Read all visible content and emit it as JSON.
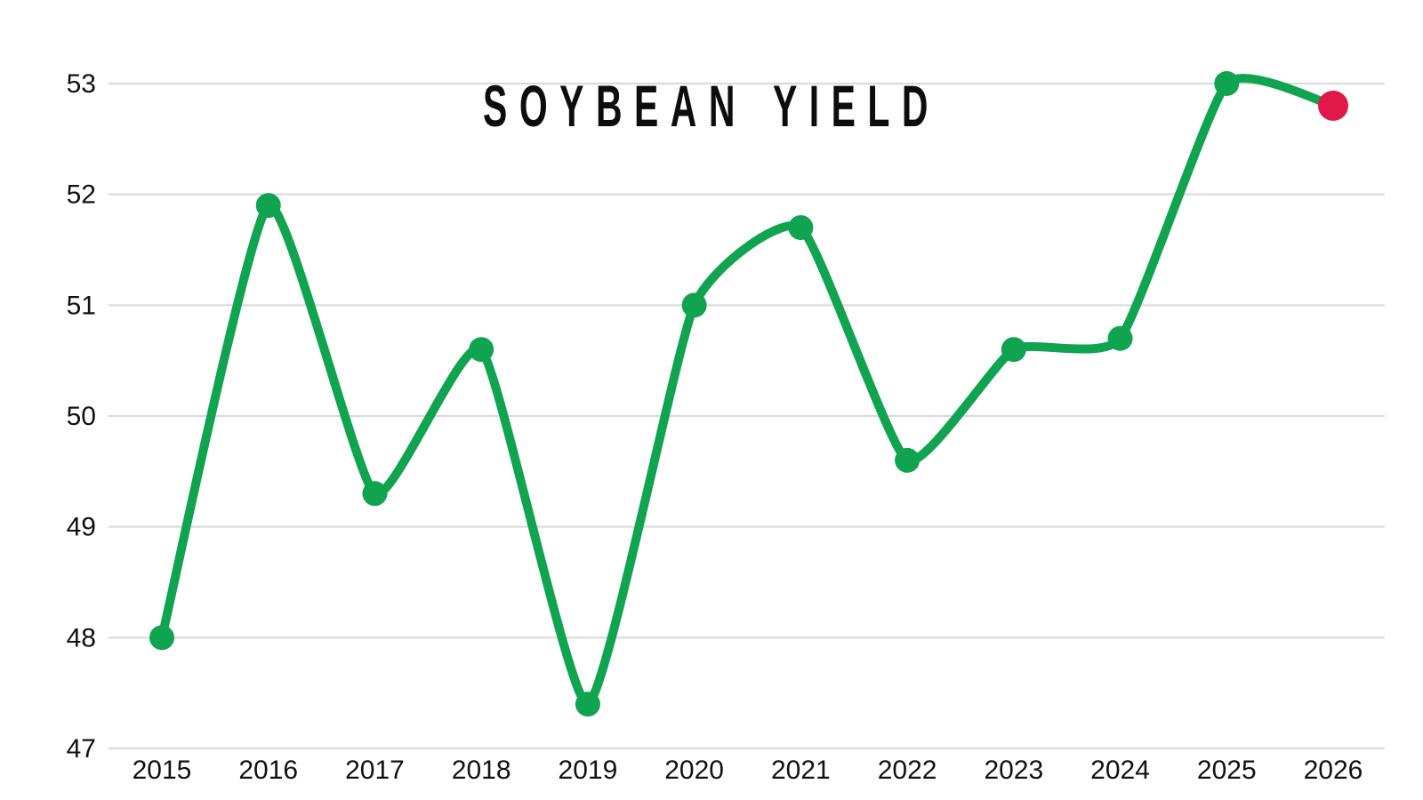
{
  "chart_data": {
    "type": "line",
    "title": "SOYBEAN YIELD",
    "categories": [
      "2015",
      "2016",
      "2017",
      "2018",
      "2019",
      "2020",
      "2021",
      "2022",
      "2023",
      "2024",
      "2025",
      "2026"
    ],
    "values": [
      48.0,
      51.9,
      49.3,
      50.6,
      47.4,
      51.0,
      51.7,
      49.6,
      50.6,
      50.7,
      53.0,
      52.8
    ],
    "xlabel": "",
    "ylabel": "",
    "ylim": [
      47,
      53
    ],
    "yticks": [
      47,
      48,
      49,
      50,
      51,
      52,
      53
    ],
    "grid": "horizontal-only",
    "legend": "none",
    "line_style": "smooth-spline-with-point-markers",
    "highlight": {
      "category": "2026",
      "value": 52.8,
      "note": "final point marked in red"
    },
    "colors": {
      "line": "#10a350",
      "point": "#10a350",
      "highlight_point": "#e0194a",
      "gridline": "#d9d9d9",
      "tick_text": "#111111",
      "title_text": "#0d0d0d",
      "background": "#ffffff"
    }
  }
}
